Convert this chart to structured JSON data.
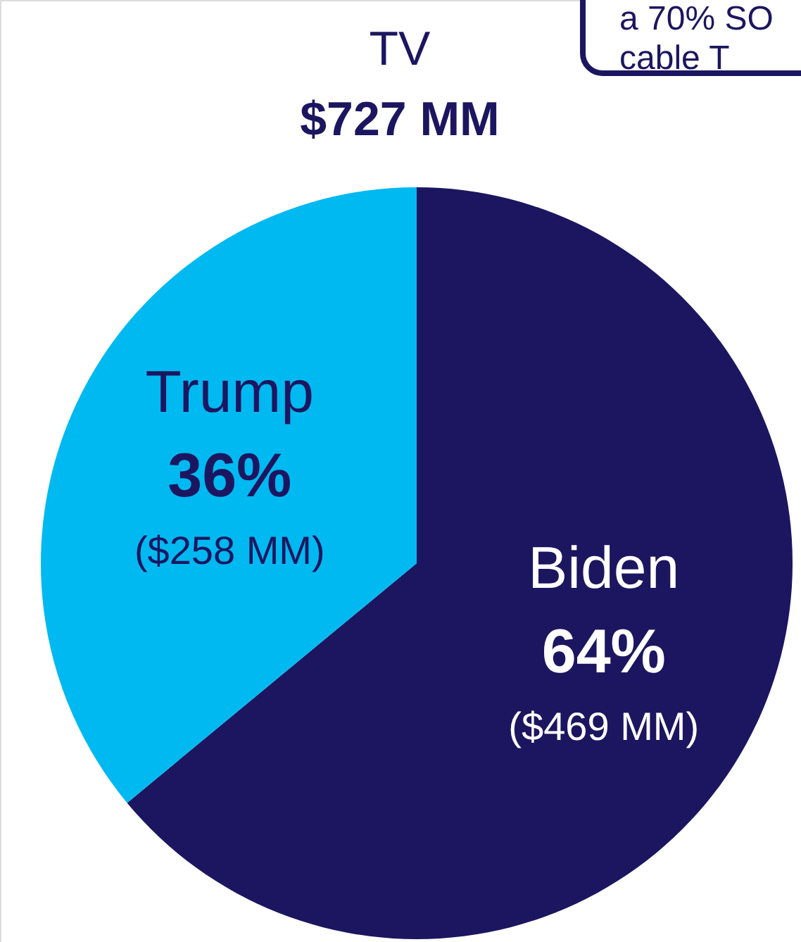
{
  "chart_data": {
    "type": "pie",
    "title": "TV",
    "subtitle": "$727 MM",
    "categories": [
      "Biden",
      "Trump"
    ],
    "values": [
      64,
      36
    ],
    "colors": [
      "#1c1660",
      "#00b9f1"
    ],
    "value_labels": [
      "64%",
      "36%"
    ],
    "annotations": [
      {
        "text": "($469 MM)",
        "x": "Biden"
      },
      {
        "text": "($258 MM)",
        "x": "Trump"
      },
      "a 70% SO\ncable T"
    ]
  }
}
